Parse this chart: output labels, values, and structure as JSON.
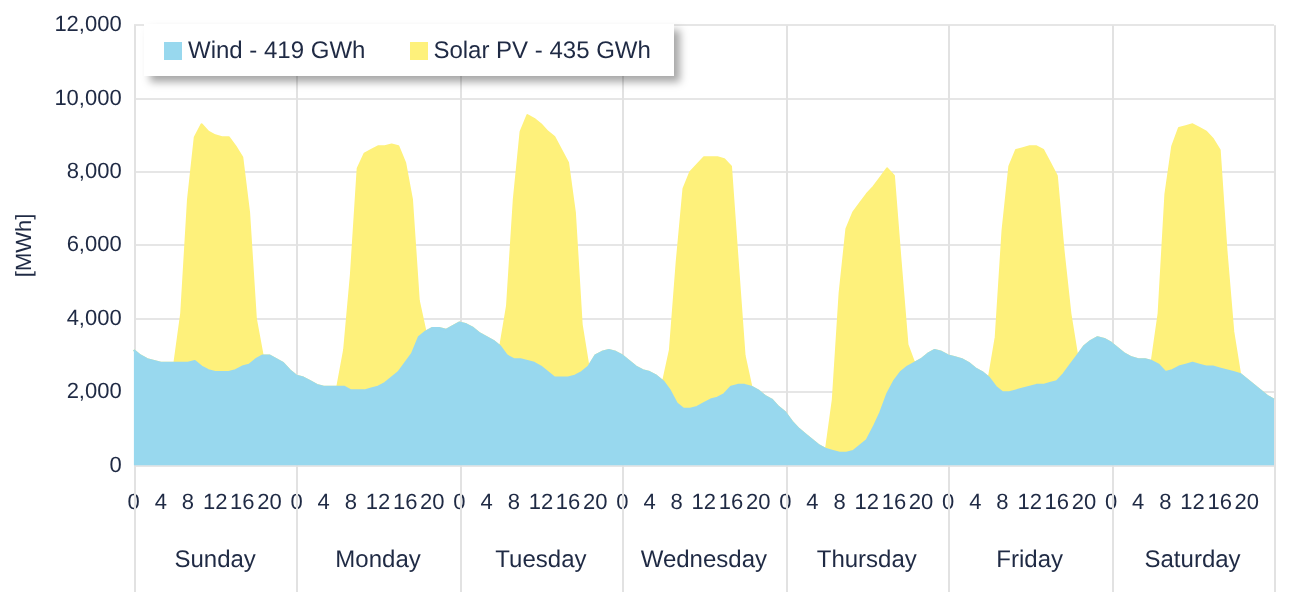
{
  "chart_data": {
    "type": "area",
    "stacked": true,
    "ylabel": "[MWh]",
    "legend": "top left",
    "grid": true,
    "marker": "none",
    "categories": [
      "0",
      null,
      null,
      null,
      "4",
      null,
      null,
      null,
      "8",
      null,
      null,
      null,
      "12",
      null,
      null,
      null,
      "16",
      null,
      null,
      null,
      "20",
      null,
      null,
      null,
      "0",
      null,
      null,
      null,
      "4",
      null,
      null,
      null,
      "8",
      null,
      null,
      null,
      "12",
      null,
      null,
      null,
      "16",
      null,
      null,
      null,
      "20",
      null,
      null,
      null,
      "0",
      null,
      null,
      null,
      "4",
      null,
      null,
      null,
      "8",
      null,
      null,
      null,
      "12",
      null,
      null,
      null,
      "16",
      null,
      null,
      null,
      "20",
      null,
      null,
      null,
      "0",
      null,
      null,
      null,
      "4",
      null,
      null,
      null,
      "8",
      null,
      null,
      null,
      "12",
      null,
      null,
      null,
      "16",
      null,
      null,
      null,
      "20",
      null,
      null,
      null,
      "0",
      null,
      null,
      null,
      "4",
      null,
      null,
      null,
      "8",
      null,
      null,
      null,
      "12",
      null,
      null,
      null,
      "16",
      null,
      null,
      null,
      "20",
      null,
      null,
      null,
      "0",
      null,
      null,
      null,
      "4",
      null,
      null,
      null,
      "8",
      null,
      null,
      null,
      "12",
      null,
      null,
      null,
      "16",
      null,
      null,
      null,
      "20",
      null,
      null,
      null,
      "0",
      null,
      null,
      null,
      "4",
      null,
      null,
      null,
      "8",
      null,
      null,
      null,
      "12",
      null,
      null,
      null,
      "16",
      null,
      null,
      null,
      "20",
      null,
      null,
      null,
      null
    ],
    "annotations": [
      "Sunday",
      "Monday",
      "Tuesday",
      "Wednesday",
      "Thursday",
      "Friday",
      "Saturday"
    ],
    "series": [
      {
        "name": "Wind - 419 GWh",
        "color": "#98d8ee",
        "values": [
          3150,
          3000,
          2900,
          2850,
          2800,
          2800,
          2800,
          2800,
          2800,
          2850,
          2700,
          2600,
          2550,
          2550,
          2550,
          2600,
          2700,
          2750,
          2900,
          3000,
          3000,
          2900,
          2800,
          2600,
          2450,
          2400,
          2300,
          2200,
          2150,
          2150,
          2150,
          2150,
          2050,
          2050,
          2050,
          2100,
          2150,
          2250,
          2400,
          2550,
          2800,
          3050,
          3500,
          3650,
          3750,
          3750,
          3700,
          3800,
          3900,
          3850,
          3750,
          3600,
          3500,
          3400,
          3250,
          3000,
          2900,
          2900,
          2850,
          2800,
          2700,
          2550,
          2400,
          2400,
          2400,
          2450,
          2550,
          2700,
          3000,
          3100,
          3150,
          3100,
          3000,
          2850,
          2700,
          2600,
          2550,
          2450,
          2300,
          2050,
          1700,
          1550,
          1550,
          1600,
          1700,
          1800,
          1850,
          1950,
          2150,
          2200,
          2200,
          2150,
          2050,
          1900,
          1800,
          1600,
          1450,
          1200,
          1000,
          850,
          700,
          550,
          450,
          400,
          350,
          350,
          400,
          550,
          700,
          1050,
          1450,
          1950,
          2300,
          2550,
          2700,
          2800,
          2900,
          3050,
          3150,
          3100,
          3000,
          2950,
          2900,
          2800,
          2650,
          2550,
          2400,
          2150,
          2000,
          2000,
          2050,
          2100,
          2150,
          2200,
          2200,
          2250,
          2300,
          2500,
          2750,
          3000,
          3250,
          3400,
          3500,
          3450,
          3350,
          3200,
          3050,
          2950,
          2900,
          2900,
          2850,
          2750,
          2550,
          2600,
          2700,
          2750,
          2800,
          2750,
          2700,
          2700,
          2650,
          2600,
          2550,
          2500,
          2350,
          2200,
          2050,
          1900,
          1800
        ]
      },
      {
        "name": "Solar PV - 435 GWh",
        "color": "#fef17b",
        "values": [
          0,
          0,
          0,
          0,
          0,
          0,
          0,
          1350,
          4450,
          6100,
          6600,
          6500,
          6450,
          6400,
          6400,
          6100,
          5700,
          4150,
          1100,
          0,
          0,
          0,
          0,
          0,
          0,
          0,
          0,
          0,
          0,
          0,
          0,
          1000,
          3150,
          6050,
          6450,
          6500,
          6550,
          6450,
          6350,
          6150,
          5450,
          4200,
          1000,
          0,
          0,
          0,
          0,
          0,
          0,
          0,
          0,
          0,
          0,
          0,
          0,
          1350,
          4350,
          6200,
          6700,
          6650,
          6600,
          6550,
          6550,
          6200,
          5850,
          4450,
          1300,
          0,
          0,
          0,
          0,
          0,
          0,
          0,
          0,
          0,
          0,
          0,
          0,
          1100,
          3850,
          6000,
          6450,
          6600,
          6700,
          6600,
          6550,
          6400,
          6000,
          3350,
          800,
          0,
          0,
          0,
          0,
          0,
          0,
          0,
          0,
          0,
          0,
          0,
          0,
          1400,
          4350,
          6100,
          6500,
          6600,
          6700,
          6550,
          6400,
          6150,
          5600,
          3000,
          600,
          0,
          0,
          0,
          0,
          0,
          0,
          0,
          0,
          0,
          0,
          0,
          0,
          1350,
          4400,
          6150,
          6550,
          6550,
          6550,
          6500,
          6400,
          6000,
          5600,
          3350,
          1400,
          0,
          0,
          0,
          0,
          0,
          0,
          0,
          0,
          0,
          0,
          0,
          0,
          1400,
          4850,
          6100,
          6500,
          6500,
          6500,
          6450,
          6400,
          6200,
          5950,
          3250,
          1100,
          0,
          0,
          0,
          0,
          0,
          0
        ]
      }
    ],
    "ylim": [
      0,
      12000
    ],
    "yticks": [
      {
        "value": 0,
        "label": "0"
      },
      {
        "value": 2000,
        "label": "2,000"
      },
      {
        "value": 4000,
        "label": "4,000"
      },
      {
        "value": 6000,
        "label": "6,000"
      },
      {
        "value": 8000,
        "label": "8,000"
      },
      {
        "value": 10000,
        "label": "10,000"
      },
      {
        "value": 12000,
        "label": "12,000"
      }
    ]
  }
}
